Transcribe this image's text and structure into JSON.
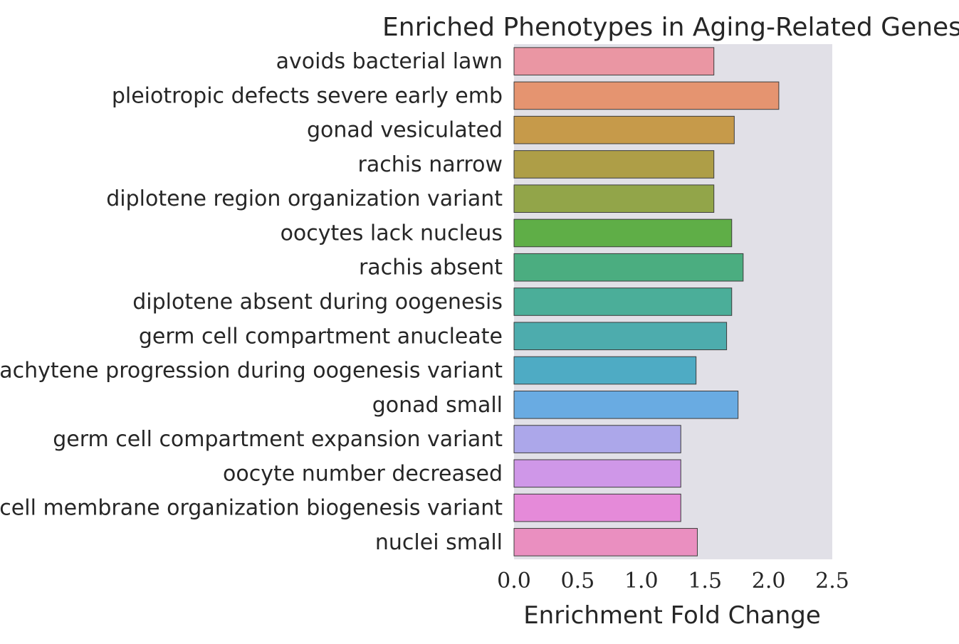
{
  "chart_data": {
    "type": "bar",
    "orientation": "horizontal",
    "title": "Enriched Phenotypes in Aging-Related Genes",
    "xlabel": "Enrichment Fold Change",
    "ylabel": "",
    "xlim": [
      0,
      2.5
    ],
    "xticks": [
      "0.0",
      "0.5",
      "1.0",
      "1.5",
      "2.0",
      "2.5"
    ],
    "grid": false,
    "legend": "none",
    "background": "#e1e0e7",
    "categories": [
      "avoids bacterial lawn",
      "pleiotropic defects severe early emb",
      "gonad vesiculated",
      "rachis narrow",
      "diplotene region organization variant",
      "oocytes lack nucleus",
      "rachis absent",
      "diplotene absent during oogenesis",
      "germ cell compartment anucleate",
      "pachytene progression during oogenesis variant",
      "gonad small",
      "germ cell compartment expansion variant",
      "oocyte number decreased",
      "cell membrane organization biogenesis variant",
      "nuclei small"
    ],
    "values": [
      1.57,
      2.08,
      1.73,
      1.57,
      1.57,
      1.71,
      1.8,
      1.71,
      1.67,
      1.43,
      1.76,
      1.31,
      1.31,
      1.31,
      1.44
    ],
    "colors": [
      "#ea96a3",
      "#e59470",
      "#c69a4a",
      "#ae9e47",
      "#92a549",
      "#5fae47",
      "#4bad80",
      "#4bae99",
      "#4dacad",
      "#4eabc4",
      "#69abe2",
      "#aca7ea",
      "#cf97e8",
      "#e58ad9",
      "#ea8fc0"
    ]
  }
}
